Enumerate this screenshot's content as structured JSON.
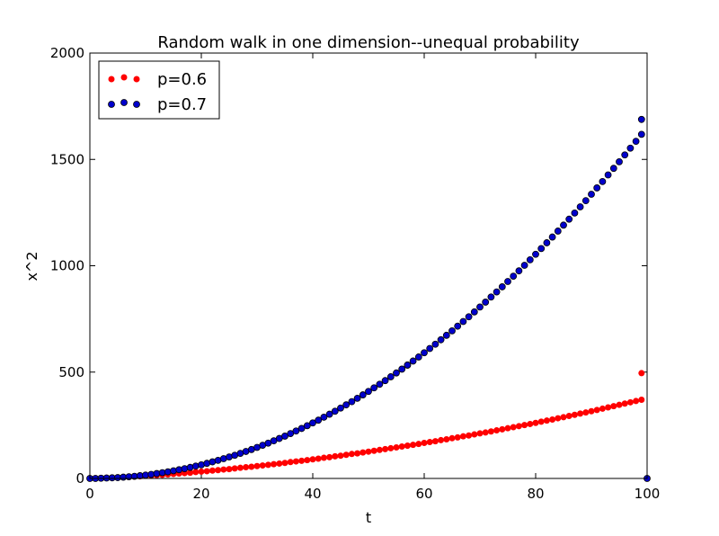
{
  "chart_data": {
    "type": "scatter",
    "title": "Random walk in one dimension--unequal probability",
    "xlabel": "t",
    "ylabel": "x^2",
    "xlim": [
      0,
      100
    ],
    "ylim": [
      0,
      2000
    ],
    "xticks": [
      0,
      20,
      40,
      60,
      80,
      100
    ],
    "yticks": [
      0,
      500,
      1000,
      1500,
      2000
    ],
    "grid": false,
    "legend_position": "top-left",
    "x": [
      0,
      1,
      2,
      3,
      4,
      5,
      6,
      7,
      8,
      9,
      10,
      11,
      12,
      13,
      14,
      15,
      16,
      17,
      18,
      19,
      20,
      21,
      22,
      23,
      24,
      25,
      26,
      27,
      28,
      29,
      30,
      31,
      32,
      33,
      34,
      35,
      36,
      37,
      38,
      39,
      40,
      41,
      42,
      43,
      44,
      45,
      46,
      47,
      48,
      49,
      50,
      51,
      52,
      53,
      54,
      55,
      56,
      57,
      57,
      58,
      59,
      60,
      61,
      62,
      63,
      64,
      65,
      66,
      67,
      68,
      69,
      70,
      71,
      72,
      73,
      74,
      75,
      76,
      77,
      78,
      79,
      80,
      81,
      82,
      83,
      84,
      85,
      86,
      87,
      88,
      89,
      90,
      91,
      92,
      93,
      94,
      95,
      96,
      97,
      98,
      99
    ],
    "series": [
      {
        "name": "p=0.6",
        "color": "#ff0000",
        "values": [
          1,
          1,
          2,
          3,
          4,
          4,
          6,
          7,
          9,
          10,
          12,
          13,
          15,
          17,
          19,
          21,
          23,
          25,
          27,
          30,
          32,
          34,
          37,
          39,
          42,
          44,
          47,
          50,
          53,
          55,
          58,
          61,
          64,
          67,
          70,
          73,
          77,
          80,
          83,
          86,
          90,
          93,
          97,
          100,
          104,
          107,
          111,
          115,
          118,
          122,
          126,
          130,
          134,
          138,
          142,
          146,
          150,
          154,
          154,
          158,
          162,
          167,
          171,
          175,
          180,
          184,
          189,
          193,
          198,
          202,
          207,
          212,
          216,
          221,
          226,
          231,
          236,
          241,
          246,
          251,
          256,
          261,
          267,
          272,
          277,
          283,
          288,
          294,
          299,
          305,
          310,
          316,
          322,
          328,
          334,
          340,
          346,
          352,
          358,
          364,
          370
        ],
        "y_endpoints": {
          "t99": 495,
          "t100": 0
        }
      },
      {
        "name": "p=0.7",
        "color": "#0000cc",
        "values": [
          0,
          0,
          1,
          2,
          3,
          4,
          6,
          8,
          10,
          13,
          16,
          19,
          23,
          27,
          31,
          36,
          41,
          46,
          52,
          58,
          64,
          71,
          78,
          85,
          93,
          101,
          109,
          118,
          127,
          136,
          146,
          156,
          166,
          177,
          188,
          199,
          211,
          223,
          235,
          248,
          261,
          274,
          288,
          302,
          316,
          331,
          346,
          361,
          377,
          393,
          409,
          426,
          443,
          460,
          478,
          496,
          514,
          533,
          533,
          552,
          571,
          591,
          611,
          631,
          652,
          673,
          694,
          716,
          738,
          760,
          783,
          806,
          829,
          853,
          877,
          901,
          926,
          951,
          976,
          1002,
          1028,
          1054,
          1081,
          1108,
          1135,
          1163,
          1191,
          1219,
          1248,
          1277,
          1306,
          1336,
          1366,
          1396,
          1427,
          1458,
          1489,
          1521,
          1553,
          1585,
          1618
        ],
        "y_endpoints": {
          "t99": 1688,
          "t100": 0
        }
      }
    ]
  }
}
